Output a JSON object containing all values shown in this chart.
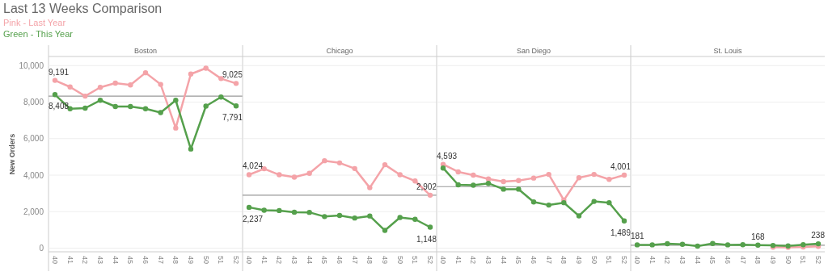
{
  "chart_data": [
    {
      "type": "line",
      "title": "Last 13 Weeks Comparison",
      "subtitle": "Boston",
      "ylabel": "New Orders",
      "categories": [
        "40",
        "41",
        "42",
        "43",
        "44",
        "45",
        "46",
        "47",
        "48",
        "49",
        "50",
        "51",
        "52"
      ],
      "ylim": [
        -200,
        10500
      ],
      "yticks": [
        {
          "value": 0,
          "label": "0"
        },
        {
          "value": 2000,
          "label": "2,000"
        },
        {
          "value": 4000,
          "label": "4,000"
        },
        {
          "value": 6000,
          "label": "6,000"
        },
        {
          "value": 8000,
          "label": "8,000"
        },
        {
          "value": 10000,
          "label": "10,000"
        }
      ],
      "grid": "y",
      "legend": "top left",
      "marker": "circle",
      "series": [
        {
          "name": "Pink - Last Year",
          "color": "#f4a3a8",
          "values": [
            9191,
            8830,
            8330,
            8810,
            9040,
            8940,
            9610,
            8970,
            6580,
            9540,
            9860,
            9290,
            9025
          ],
          "value_labels": [
            "9,191",
            null,
            null,
            null,
            null,
            null,
            null,
            null,
            null,
            null,
            null,
            null,
            "9,025"
          ]
        },
        {
          "name": "Green - This Year",
          "color": "#55a04c",
          "values": [
            8408,
            7640,
            7670,
            8100,
            7760,
            7760,
            7640,
            7430,
            8100,
            5430,
            7780,
            8280,
            7791
          ],
          "value_labels": [
            "8,408",
            null,
            null,
            null,
            null,
            null,
            null,
            null,
            null,
            null,
            null,
            null,
            "7,791"
          ]
        }
      ],
      "ref_lines": [
        {
          "axis": "y",
          "value": 8330,
          "color": "#999999"
        }
      ]
    },
    {
      "type": "line",
      "subtitle": "Chicago",
      "categories": [
        "40",
        "41",
        "42",
        "43",
        "44",
        "45",
        "46",
        "47",
        "48",
        "49",
        "50",
        "51",
        "52"
      ],
      "ylim": [
        -200,
        10500
      ],
      "yticks": [
        0,
        2000,
        4000,
        6000,
        8000,
        10000
      ],
      "tick_labels": "x",
      "grid": "y",
      "marker": "circle",
      "series": [
        {
          "color": "#f4a3a8",
          "values": [
            4024,
            4350,
            4020,
            3890,
            4100,
            4790,
            4670,
            4360,
            3310,
            4570,
            4020,
            3680,
            2902
          ],
          "value_labels": [
            "4,024",
            null,
            null,
            null,
            null,
            null,
            null,
            null,
            null,
            null,
            null,
            null,
            "2,902"
          ]
        },
        {
          "color": "#55a04c",
          "values": [
            2237,
            2080,
            2060,
            1970,
            1960,
            1730,
            1790,
            1650,
            1760,
            970,
            1680,
            1580,
            1148
          ],
          "value_labels": [
            "2,237",
            null,
            null,
            null,
            null,
            null,
            null,
            null,
            null,
            null,
            null,
            null,
            "1,148"
          ]
        }
      ],
      "ref_lines": [
        {
          "axis": "y",
          "value": 2900,
          "color": "#999999"
        }
      ]
    },
    {
      "type": "line",
      "subtitle": "San Diego",
      "categories": [
        "40",
        "41",
        "42",
        "43",
        "44",
        "45",
        "46",
        "47",
        "48",
        "49",
        "50",
        "51",
        "52"
      ],
      "ylim": [
        -200,
        10500
      ],
      "yticks": [
        0,
        2000,
        4000,
        6000,
        8000,
        10000
      ],
      "tick_labels": "x",
      "grid": "y",
      "marker": "circle",
      "series": [
        {
          "color": "#f4a3a8",
          "values": [
            4593,
            4180,
            4000,
            3790,
            3650,
            3700,
            3840,
            4040,
            2630,
            3860,
            4040,
            3770,
            4001
          ],
          "value_labels": [
            "4,593",
            null,
            null,
            null,
            null,
            null,
            null,
            null,
            null,
            null,
            null,
            null,
            "4,001"
          ]
        },
        {
          "color": "#55a04c",
          "values": [
            4390,
            3470,
            3450,
            3550,
            3230,
            3230,
            2530,
            2360,
            2490,
            1770,
            2560,
            2490,
            1489
          ],
          "value_labels": [
            null,
            null,
            null,
            null,
            null,
            null,
            null,
            null,
            null,
            null,
            null,
            null,
            "1,489"
          ]
        }
      ],
      "ref_lines": [
        {
          "axis": "y",
          "value": 3370,
          "color": "#999999"
        }
      ]
    },
    {
      "type": "line",
      "subtitle": "St. Louis",
      "categories": [
        "40",
        "41",
        "42",
        "43",
        "44",
        "45",
        "46",
        "47",
        "48",
        "49",
        "50",
        "51",
        "52"
      ],
      "ylim": [
        -200,
        10500
      ],
      "yticks": [
        0,
        2000,
        4000,
        6000,
        8000,
        10000
      ],
      "tick_labels": "x",
      "grid": "y",
      "marker": "circle",
      "series": [
        {
          "color": "#f4a3a8",
          "values": [
            null,
            null,
            null,
            null,
            null,
            null,
            null,
            null,
            null,
            50,
            40,
            60,
            100
          ]
        },
        {
          "color": "#55a04c",
          "values": [
            181,
            180,
            240,
            210,
            110,
            250,
            180,
            190,
            168,
            150,
            120,
            190,
            238
          ],
          "value_labels": [
            "181",
            null,
            null,
            null,
            null,
            null,
            null,
            null,
            "168",
            null,
            null,
            null,
            "238"
          ]
        }
      ],
      "ref_lines": [
        {
          "axis": "y",
          "value": 160,
          "color": "#999999"
        }
      ]
    }
  ]
}
